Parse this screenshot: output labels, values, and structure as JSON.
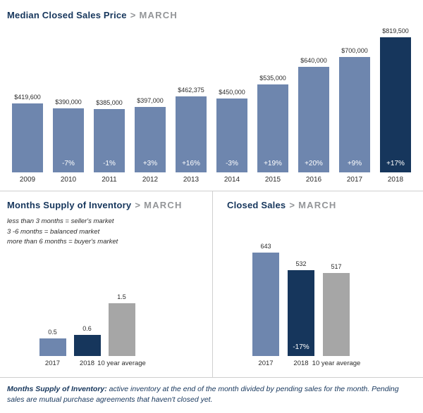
{
  "colors": {
    "blue": "#6e86ae",
    "navy": "#16365c",
    "gray": "#a6a6a6"
  },
  "median_sales_price": {
    "title": "Median Closed Sales Price",
    "separator": ">",
    "subtitle": "MARCH",
    "chart_data": {
      "type": "bar",
      "categories": [
        "2009",
        "2010",
        "2011",
        "2012",
        "2013",
        "2014",
        "2015",
        "2016",
        "2017",
        "2018"
      ],
      "values": [
        419600,
        390000,
        385000,
        397000,
        462375,
        450000,
        535000,
        640000,
        700000,
        819500
      ],
      "value_labels": [
        "$419,600",
        "$390,000",
        "$385,000",
        "$397,000",
        "$462,375",
        "$450,000",
        "$535,000",
        "$640,000",
        "$700,000",
        "$819,500"
      ],
      "pct_labels": [
        "",
        "-7%",
        "-1%",
        "+3%",
        "+16%",
        "-3%",
        "+19%",
        "+20%",
        "+9%",
        "+17%"
      ],
      "bar_colors": [
        "blue",
        "blue",
        "blue",
        "blue",
        "blue",
        "blue",
        "blue",
        "blue",
        "blue",
        "navy"
      ],
      "ylim": [
        0,
        819500
      ],
      "grid": false,
      "legend_position": "none"
    }
  },
  "months_supply": {
    "title": "Months Supply of Inventory",
    "separator": ">",
    "subtitle": "MARCH",
    "legend_lines": [
      "less than 3 months = seller's market",
      "3 -6 months = balanced market",
      "more than 6 months = buyer's market"
    ],
    "chart_data": {
      "type": "bar",
      "categories": [
        "2017",
        "2018",
        "10 year average"
      ],
      "values": [
        0.5,
        0.6,
        1.5
      ],
      "value_labels": [
        "0.5",
        "0.6",
        "1.5"
      ],
      "pct_labels": [
        "",
        "",
        ""
      ],
      "bar_colors": [
        "blue",
        "navy",
        "gray"
      ],
      "ylim": [
        0,
        1.6
      ],
      "grid": false,
      "legend_position": "none"
    }
  },
  "closed_sales": {
    "title": "Closed Sales",
    "separator": ">",
    "subtitle": "MARCH",
    "chart_data": {
      "type": "bar",
      "categories": [
        "2017",
        "2018",
        "10 year average"
      ],
      "values": [
        643,
        532,
        517
      ],
      "value_labels": [
        "643",
        "532",
        "517"
      ],
      "pct_labels": [
        "",
        "-17%",
        ""
      ],
      "bar_colors": [
        "blue",
        "navy",
        "gray"
      ],
      "ylim": [
        0,
        700
      ],
      "grid": false,
      "legend_position": "none"
    }
  },
  "footer": {
    "bold_lead": "Months Supply of Inventory:",
    "text": " active inventory at the end of the month divided by pending sales for the month. Pending sales are mutual purchase agreements that haven't closed yet."
  }
}
